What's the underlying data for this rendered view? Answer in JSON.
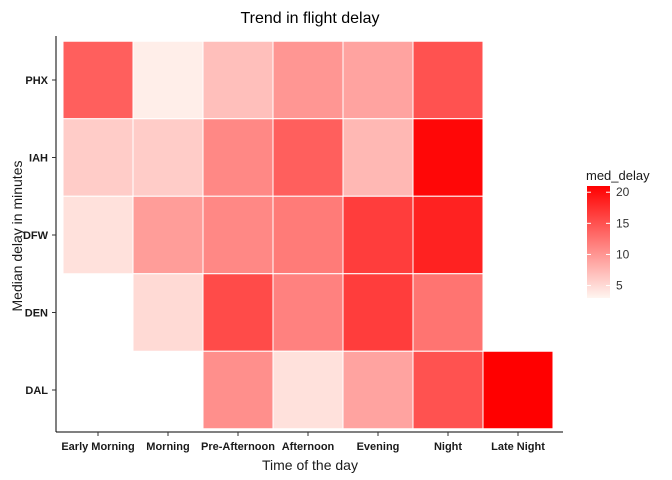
{
  "chart_data": {
    "type": "heatmap",
    "title": "Trend in flight delay",
    "xlabel": "Time of the day",
    "ylabel": "Median delay in minutes",
    "x_categories": [
      "Early Morning",
      "Morning",
      "Pre-Afternoon",
      "Afternoon",
      "Evening",
      "Night",
      "Late Night"
    ],
    "y_categories": [
      "DAL",
      "DEN",
      "DFW",
      "IAH",
      "PHX"
    ],
    "cells": [
      {
        "x": "Early Morning",
        "y": "PHX",
        "value": 14
      },
      {
        "x": "Morning",
        "y": "PHX",
        "value": 3.5
      },
      {
        "x": "Pre-Afternoon",
        "y": "PHX",
        "value": 7
      },
      {
        "x": "Afternoon",
        "y": "PHX",
        "value": 10
      },
      {
        "x": "Evening",
        "y": "PHX",
        "value": 9
      },
      {
        "x": "Night",
        "y": "PHX",
        "value": 15
      },
      {
        "x": "Early Morning",
        "y": "IAH",
        "value": 6
      },
      {
        "x": "Morning",
        "y": "IAH",
        "value": 6
      },
      {
        "x": "Pre-Afternoon",
        "y": "IAH",
        "value": 11
      },
      {
        "x": "Afternoon",
        "y": "IAH",
        "value": 14
      },
      {
        "x": "Evening",
        "y": "IAH",
        "value": 7.5
      },
      {
        "x": "Night",
        "y": "IAH",
        "value": 20.5
      },
      {
        "x": "Early Morning",
        "y": "DFW",
        "value": 4.5
      },
      {
        "x": "Morning",
        "y": "DFW",
        "value": 9.5
      },
      {
        "x": "Pre-Afternoon",
        "y": "DFW",
        "value": 11
      },
      {
        "x": "Afternoon",
        "y": "DFW",
        "value": 12
      },
      {
        "x": "Evening",
        "y": "DFW",
        "value": 16.5
      },
      {
        "x": "Night",
        "y": "DFW",
        "value": 18.5
      },
      {
        "x": "Morning",
        "y": "DEN",
        "value": 5
      },
      {
        "x": "Pre-Afternoon",
        "y": "DEN",
        "value": 15.5
      },
      {
        "x": "Afternoon",
        "y": "DEN",
        "value": 11.5
      },
      {
        "x": "Evening",
        "y": "DEN",
        "value": 16.5
      },
      {
        "x": "Night",
        "y": "DEN",
        "value": 12.5
      },
      {
        "x": "Pre-Afternoon",
        "y": "DAL",
        "value": 10.5
      },
      {
        "x": "Afternoon",
        "y": "DAL",
        "value": 4.5
      },
      {
        "x": "Evening",
        "y": "DAL",
        "value": 9
      },
      {
        "x": "Night",
        "y": "DAL",
        "value": 15
      },
      {
        "x": "Late Night",
        "y": "DAL",
        "value": 21
      }
    ],
    "legend": {
      "title": "med_delay",
      "placement": "right",
      "min": 3,
      "max": 21,
      "ticks": [
        5,
        10,
        15,
        20
      ],
      "low_color": "#fff5f0",
      "high_color": "#ff0000"
    },
    "grid": false
  }
}
